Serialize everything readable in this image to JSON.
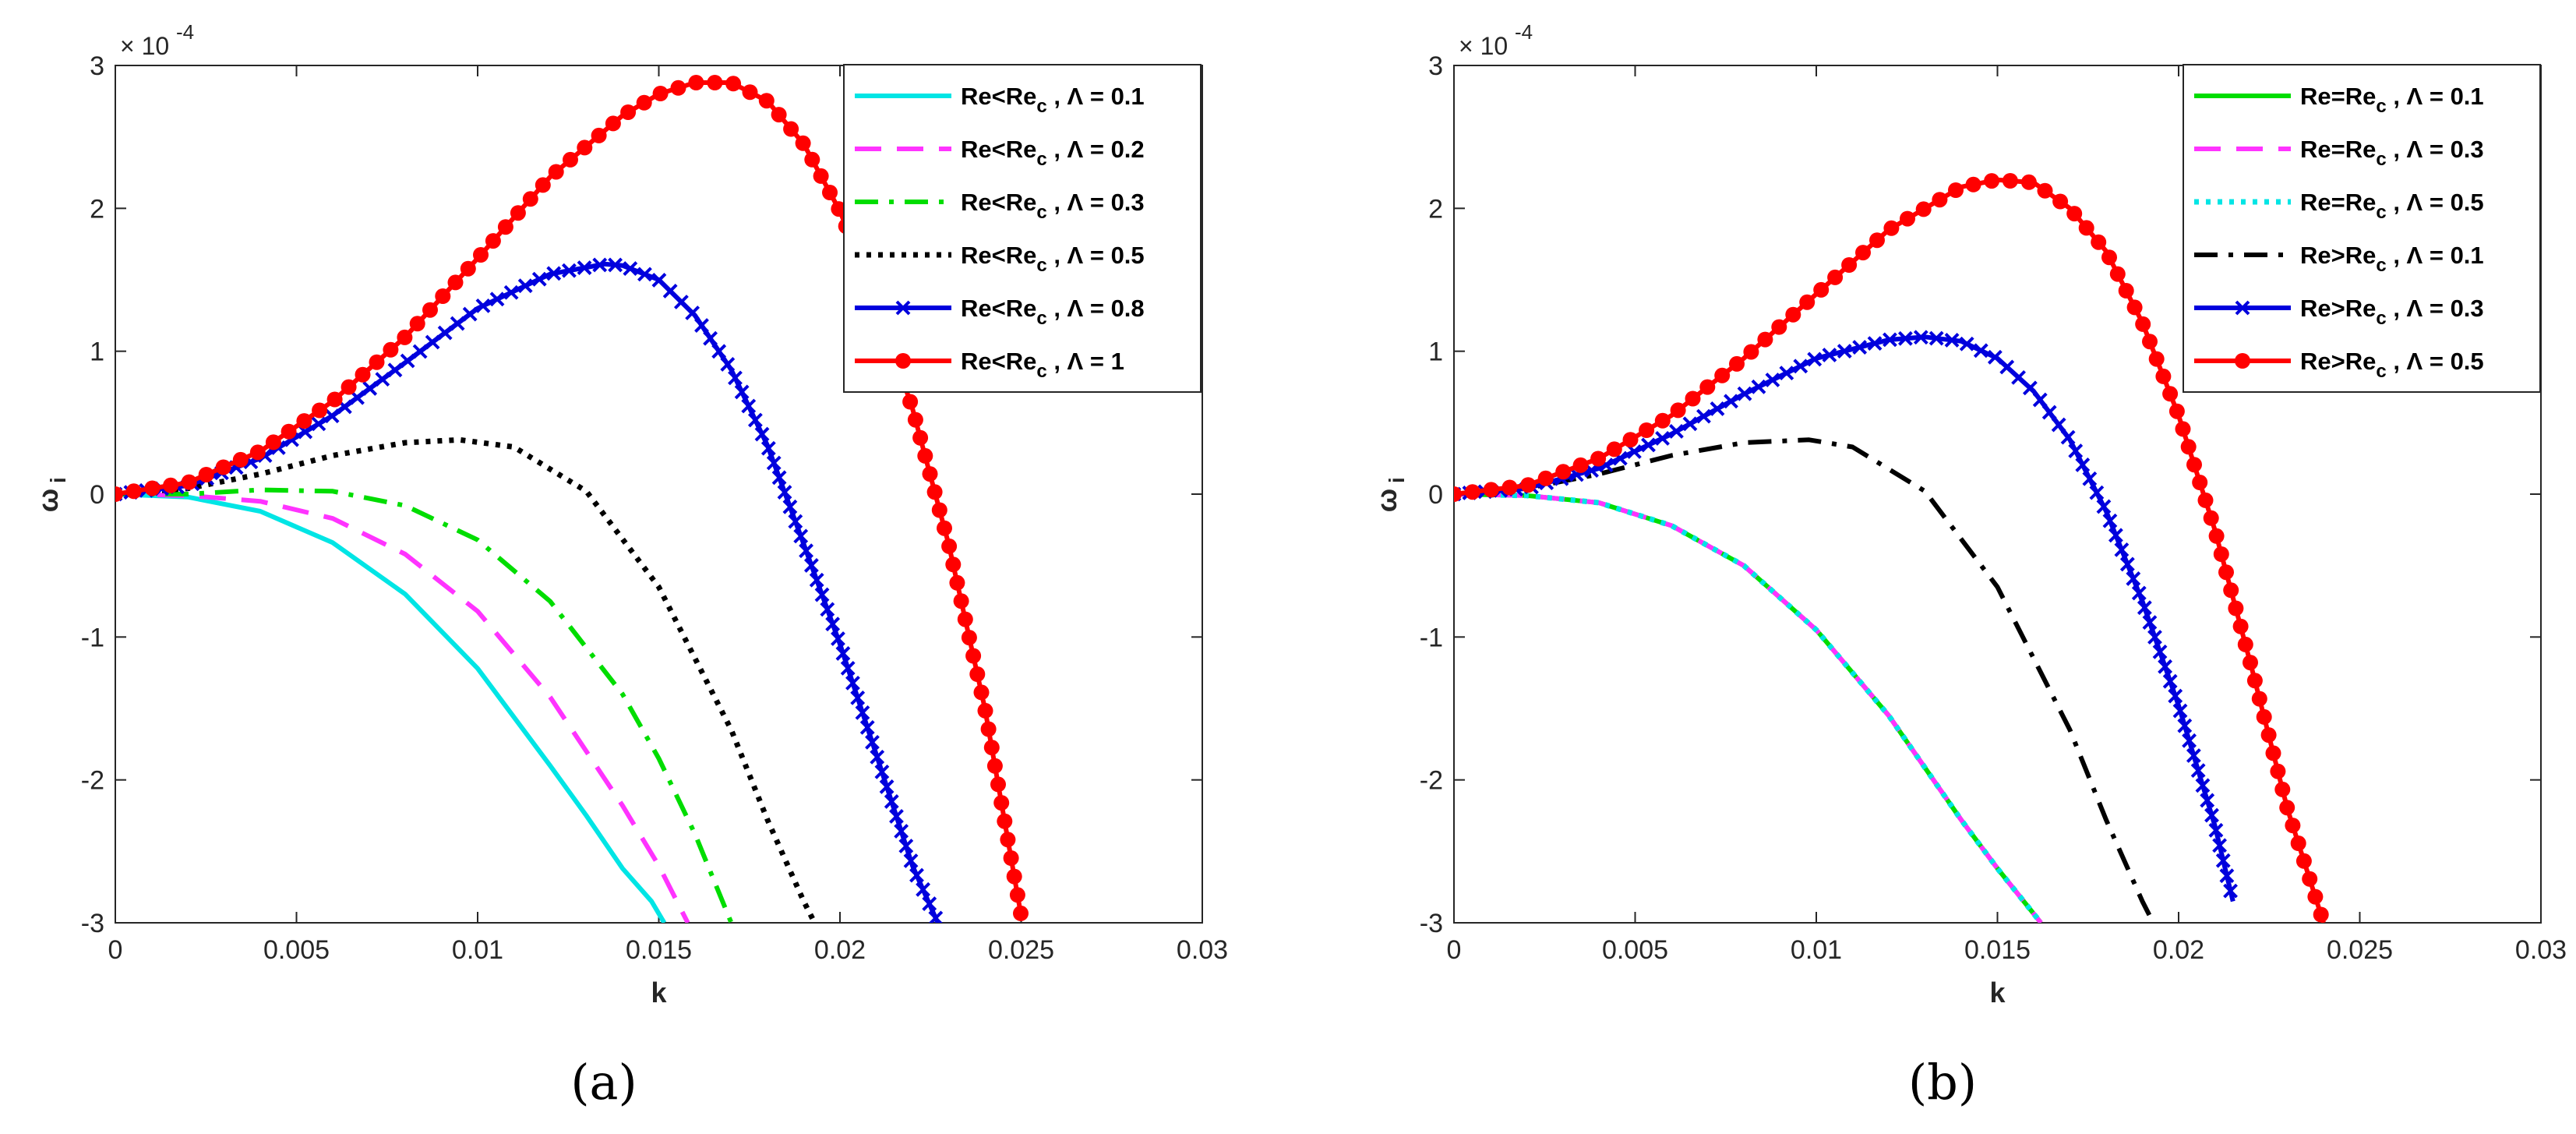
{
  "chart_data": [
    {
      "type": "line",
      "caption": "(a)",
      "xlabel": "k",
      "ylabel": "ω",
      "ylabel_subscript": "i",
      "y_multiplier": "× 10",
      "y_multiplier_exp": "-4",
      "xlim": [
        0,
        0.03
      ],
      "ylim": [
        -3,
        3
      ],
      "xticks": [
        "0",
        "0.005",
        "0.01",
        "0.015",
        "0.02",
        "0.025",
        "0.03"
      ],
      "yticks": [
        "-3",
        "-2",
        "-1",
        "0",
        "1",
        "2",
        "3"
      ],
      "legend_position": "top-right",
      "series": [
        {
          "name": "Re<Re_c , Λ = 0.1",
          "label_main": "Re<Re",
          "label_sub": "c",
          "label_tail": " , Λ = 0.1",
          "color": "#00e5e5",
          "style": "solid",
          "marker": "none",
          "x": [
            0,
            0.002,
            0.004,
            0.006,
            0.008,
            0.01,
            0.012,
            0.013,
            0.014,
            0.0148,
            0.01515
          ],
          "y": [
            0,
            -0.02,
            -0.12,
            -0.34,
            -0.7,
            -1.22,
            -1.9,
            -2.25,
            -2.62,
            -2.85,
            -3.0
          ]
        },
        {
          "name": "Re<Re_c , Λ = 0.2",
          "label_main": "Re<Re",
          "label_sub": "c",
          "label_tail": " , Λ = 0.2",
          "color": "#ff33ff",
          "style": "dashed",
          "marker": "none",
          "x": [
            0,
            0.002,
            0.004,
            0.006,
            0.008,
            0.01,
            0.012,
            0.014,
            0.015,
            0.0158
          ],
          "y": [
            0,
            -0.01,
            -0.05,
            -0.17,
            -0.42,
            -0.82,
            -1.42,
            -2.18,
            -2.6,
            -3.0
          ]
        },
        {
          "name": "Re<Re_c , Λ = 0.3",
          "label_main": "Re<Re",
          "label_sub": "c",
          "label_tail": " , Λ = 0.3",
          "color": "#00dd00",
          "style": "dashdot",
          "marker": "none",
          "x": [
            0,
            0.002,
            0.004,
            0.006,
            0.008,
            0.01,
            0.012,
            0.014,
            0.015,
            0.016,
            0.017
          ],
          "y": [
            0,
            0.0,
            0.03,
            0.02,
            -0.08,
            -0.32,
            -0.75,
            -1.4,
            -1.85,
            -2.38,
            -3.0
          ]
        },
        {
          "name": "Re<Re_c , Λ = 0.5",
          "label_main": "Re<Re",
          "label_sub": "c",
          "label_tail": " , Λ = 0.5",
          "color": "#000000",
          "style": "dotted",
          "marker": "none",
          "x": [
            0,
            0.002,
            0.004,
            0.006,
            0.008,
            0.0095,
            0.011,
            0.013,
            0.015,
            0.017,
            0.018,
            0.019,
            0.0193
          ],
          "y": [
            0,
            0.04,
            0.14,
            0.27,
            0.36,
            0.38,
            0.33,
            0.02,
            -0.65,
            -1.65,
            -2.28,
            -2.85,
            -3.0
          ]
        },
        {
          "name": "Re<Re_c , Λ = 0.8",
          "label_main": "Re<Re",
          "label_sub": "c",
          "label_tail": " , Λ = 0.8",
          "color": "#0000dd",
          "style": "solid",
          "marker": "x",
          "x": [
            0,
            0.002,
            0.004,
            0.006,
            0.008,
            0.01,
            0.012,
            0.0135,
            0.014,
            0.015,
            0.016,
            0.017,
            0.018,
            0.019,
            0.02,
            0.021,
            0.022,
            0.0227
          ],
          "y": [
            0,
            0.06,
            0.25,
            0.55,
            0.92,
            1.3,
            1.54,
            1.61,
            1.6,
            1.5,
            1.25,
            0.87,
            0.34,
            -0.35,
            -1.05,
            -1.82,
            -2.6,
            -3.0
          ]
        },
        {
          "name": "Re<Re_c , Λ = 1",
          "label_main": "Re<Re",
          "label_sub": "c",
          "label_tail": " , Λ = 1",
          "color": "#ff0000",
          "style": "solid",
          "marker": "o",
          "x": [
            0,
            0.002,
            0.004,
            0.006,
            0.008,
            0.01,
            0.012,
            0.014,
            0.015,
            0.016,
            0.017,
            0.018,
            0.019,
            0.02,
            0.021,
            0.022,
            0.023,
            0.024,
            0.025
          ],
          "y": [
            0,
            0.08,
            0.3,
            0.65,
            1.1,
            1.65,
            2.22,
            2.65,
            2.8,
            2.88,
            2.88,
            2.75,
            2.45,
            1.98,
            1.35,
            0.6,
            -0.35,
            -1.5,
            -2.95
          ]
        }
      ]
    },
    {
      "type": "line",
      "caption": "(b)",
      "xlabel": "k",
      "ylabel": "ω",
      "ylabel_subscript": "i",
      "y_multiplier": "× 10",
      "y_multiplier_exp": "-4",
      "xlim": [
        0,
        0.03
      ],
      "ylim": [
        -3,
        3
      ],
      "xticks": [
        "0",
        "0.005",
        "0.01",
        "0.015",
        "0.02",
        "0.025",
        "0.03"
      ],
      "yticks": [
        "-3",
        "-2",
        "-1",
        "0",
        "1",
        "2",
        "3"
      ],
      "legend_position": "top-right",
      "series": [
        {
          "name": "Re=Re_c , Λ = 0.1",
          "label_main": "Re=Re",
          "label_sub": "c",
          "label_tail": " , Λ = 0.1",
          "color": "#00dd00",
          "style": "solid",
          "marker": "none",
          "x": [
            0,
            0.002,
            0.004,
            0.006,
            0.008,
            0.01,
            0.012,
            0.014,
            0.015,
            0.0162
          ],
          "y": [
            0,
            -0.01,
            -0.06,
            -0.22,
            -0.5,
            -0.95,
            -1.55,
            -2.28,
            -2.62,
            -3.0
          ]
        },
        {
          "name": "Re=Re_c , Λ = 0.3",
          "label_main": "Re=Re",
          "label_sub": "c",
          "label_tail": " , Λ = 0.3",
          "color": "#ff33ff",
          "style": "dashed",
          "marker": "none",
          "x": [
            0,
            0.002,
            0.004,
            0.006,
            0.008,
            0.01,
            0.012,
            0.014,
            0.015,
            0.0162
          ],
          "y": [
            0,
            -0.01,
            -0.06,
            -0.22,
            -0.5,
            -0.95,
            -1.55,
            -2.28,
            -2.62,
            -3.0
          ]
        },
        {
          "name": "Re=Re_c , Λ = 0.5",
          "label_main": "Re=Re",
          "label_sub": "c",
          "label_tail": " , Λ = 0.5",
          "color": "#00e5e5",
          "style": "dotted",
          "marker": "none",
          "x": [
            0,
            0.002,
            0.004,
            0.006,
            0.008,
            0.01,
            0.012,
            0.014,
            0.015,
            0.0162
          ],
          "y": [
            0,
            -0.01,
            -0.06,
            -0.22,
            -0.5,
            -0.95,
            -1.55,
            -2.28,
            -2.62,
            -3.0
          ]
        },
        {
          "name": "Re>Re_c , Λ = 0.1",
          "label_main": "Re>Re",
          "label_sub": "c",
          "label_tail": " , Λ = 0.1",
          "color": "#000000",
          "style": "dashdot",
          "marker": "none",
          "x": [
            0,
            0.002,
            0.004,
            0.006,
            0.008,
            0.0098,
            0.011,
            0.013,
            0.015,
            0.017,
            0.018,
            0.019,
            0.0193
          ],
          "y": [
            0,
            0.04,
            0.14,
            0.27,
            0.36,
            0.38,
            0.33,
            0.02,
            -0.65,
            -1.65,
            -2.28,
            -2.85,
            -3.0
          ]
        },
        {
          "name": "Re>Re_c , Λ = 0.3",
          "label_main": "Re>Re",
          "label_sub": "c",
          "label_tail": " , Λ = 0.3",
          "color": "#0000dd",
          "style": "solid",
          "marker": "x",
          "x": [
            0,
            0.002,
            0.004,
            0.006,
            0.008,
            0.01,
            0.012,
            0.013,
            0.014,
            0.015,
            0.016,
            0.017,
            0.018,
            0.019,
            0.02,
            0.021,
            0.0215
          ],
          "y": [
            0,
            0.04,
            0.18,
            0.42,
            0.7,
            0.95,
            1.08,
            1.1,
            1.07,
            0.95,
            0.72,
            0.38,
            -0.12,
            -0.75,
            -1.48,
            -2.32,
            -2.85
          ]
        },
        {
          "name": "Re>Re_c , Λ = 0.5",
          "label_main": "Re>Re",
          "label_sub": "c",
          "label_tail": " , Λ = 0.5",
          "color": "#ff0000",
          "style": "solid",
          "marker": "o",
          "x": [
            0,
            0.002,
            0.004,
            0.006,
            0.008,
            0.01,
            0.012,
            0.014,
            0.015,
            0.016,
            0.017,
            0.018,
            0.019,
            0.02,
            0.021,
            0.022,
            0.023,
            0.024
          ],
          "y": [
            0,
            0.06,
            0.25,
            0.55,
            0.95,
            1.4,
            1.85,
            2.15,
            2.2,
            2.18,
            2.0,
            1.7,
            1.2,
            0.55,
            -0.25,
            -1.2,
            -2.2,
            -3.0
          ]
        }
      ]
    }
  ]
}
